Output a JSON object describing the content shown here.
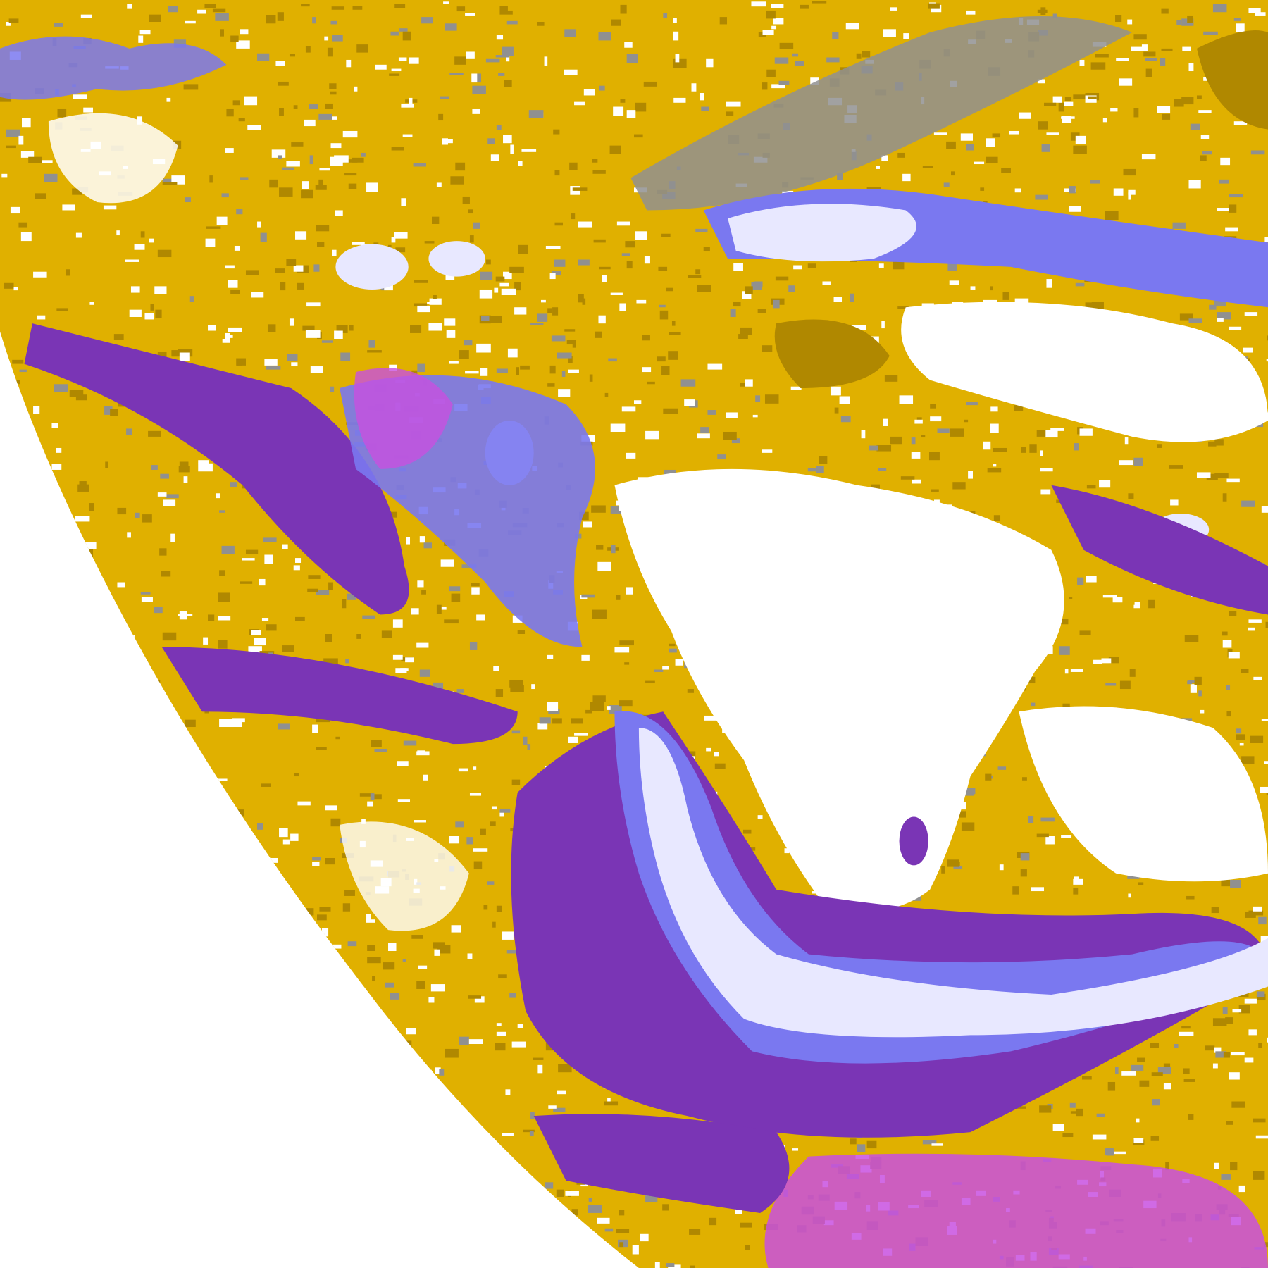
{
  "image": {
    "kind": "false-color satellite cloud-classification image of the Earth's disk over South America",
    "palette": {
      "background": "#ffffff",
      "clear_land": "#ffffff",
      "low_cloud": "#e0b000",
      "low_cloud_dark": "#b08800",
      "mid_cloud": "#909090",
      "high_cloud": "#7a78f0",
      "thick_high_cloud": "#e8e8ff",
      "thin_cirrus_dark": "#7a35b5",
      "thin_cirrus_light": "#c850e0"
    }
  }
}
